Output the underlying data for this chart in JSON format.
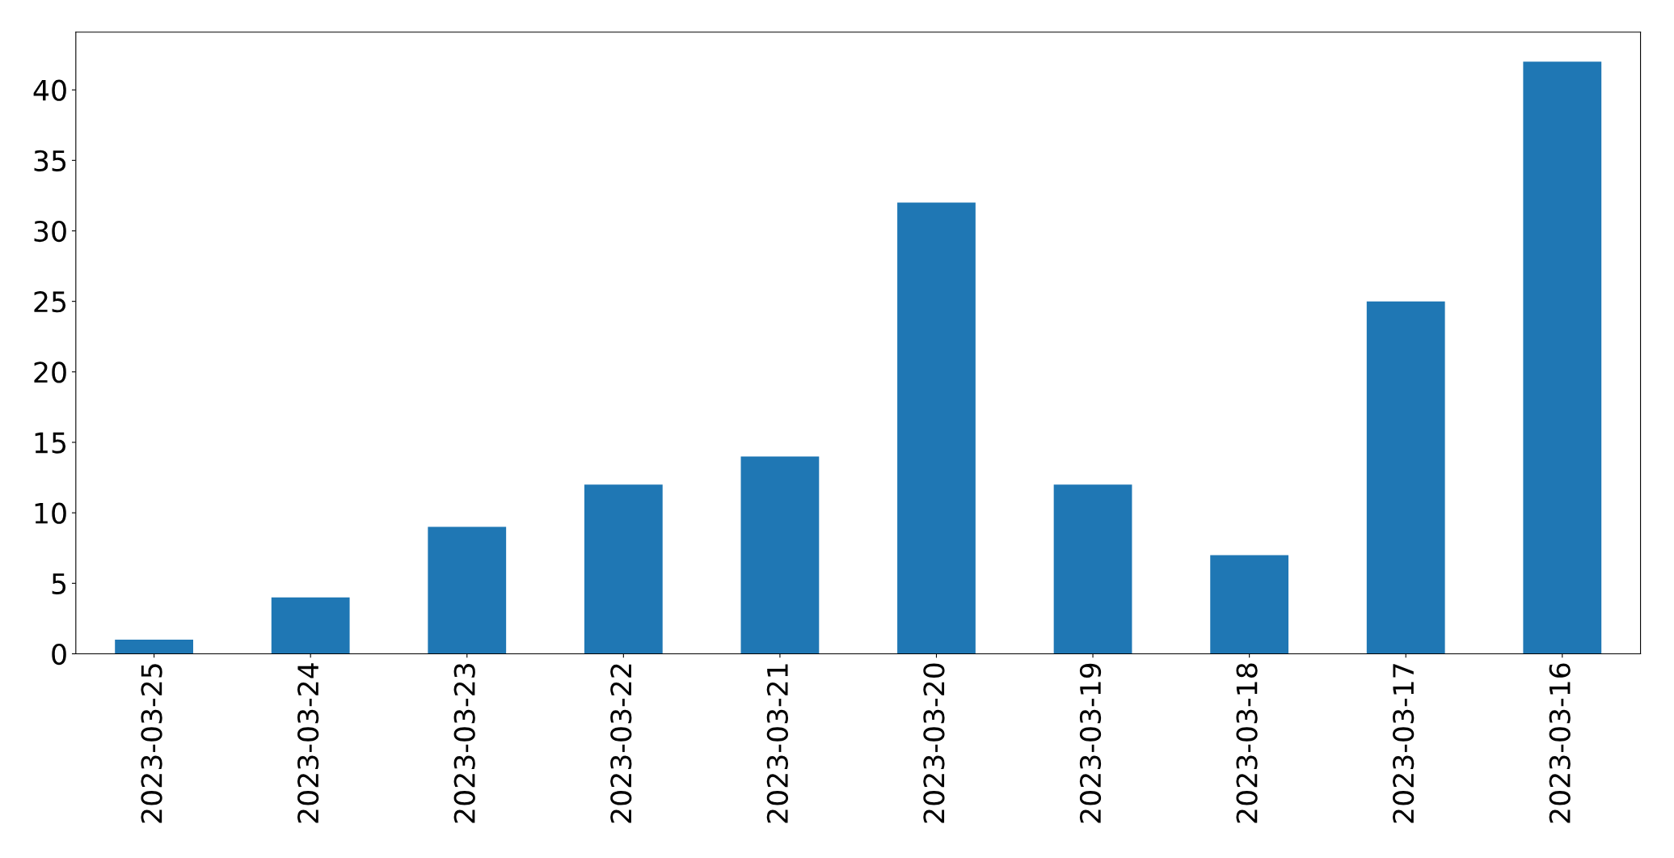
{
  "chart_data": {
    "type": "bar",
    "categories": [
      "2023-03-25",
      "2023-03-24",
      "2023-03-23",
      "2023-03-22",
      "2023-03-21",
      "2023-03-20",
      "2023-03-19",
      "2023-03-18",
      "2023-03-17",
      "2023-03-16"
    ],
    "values": [
      1,
      4,
      9,
      12,
      14,
      32,
      12,
      7,
      25,
      42
    ],
    "color": "#1f77b4",
    "ylim": [
      0,
      44.1
    ],
    "yticks": [
      0,
      5,
      10,
      15,
      20,
      25,
      30,
      35,
      40
    ],
    "grid": false,
    "legend": false
  }
}
